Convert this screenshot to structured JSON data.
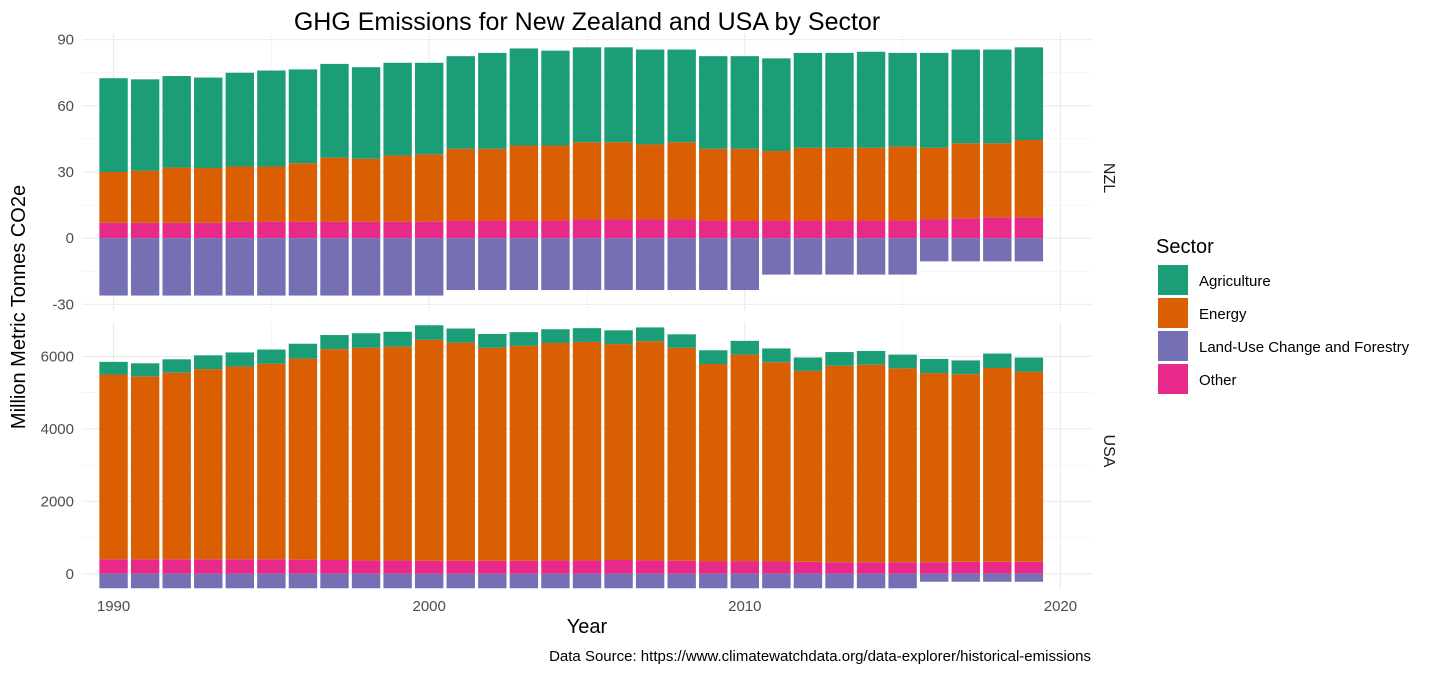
{
  "chart_data": {
    "type": "bar",
    "stacked": true,
    "title": "GHG Emissions for New Zealand and USA by Sector",
    "xlabel": "Year",
    "ylabel": "Million Metric Tonnes CO2e",
    "caption": "Data Source: https://www.climatewatchdata.org/data-explorer/historical-emissions",
    "legend_title": "Sector",
    "legend_position": "right",
    "grid": true,
    "x": [
      1990,
      1991,
      1992,
      1993,
      1994,
      1995,
      1996,
      1997,
      1998,
      1999,
      2000,
      2001,
      2002,
      2003,
      2004,
      2005,
      2006,
      2007,
      2008,
      2009,
      2010,
      2011,
      2012,
      2013,
      2014,
      2015,
      2016,
      2017,
      2018,
      2019
    ],
    "xlim": [
      1989,
      2021
    ],
    "x_ticks": [
      1990,
      2000,
      2010,
      2020
    ],
    "sectors": [
      {
        "name": "Agriculture",
        "color": "#1b9e77"
      },
      {
        "name": "Energy",
        "color": "#d95f02"
      },
      {
        "name": "Land-Use Change and Forestry",
        "color": "#7570b3"
      },
      {
        "name": "Other",
        "color": "#e7298a"
      }
    ],
    "panels": [
      {
        "strip": "NZL",
        "ylim": [
          -33,
          93
        ],
        "y_ticks": [
          90,
          60,
          30,
          0,
          -30
        ],
        "series": [
          {
            "name": "Other",
            "values": [
              7.0,
              7.0,
              7.0,
              7.0,
              7.5,
              7.5,
              7.5,
              7.5,
              7.5,
              7.5,
              7.5,
              8.0,
              8.0,
              8.0,
              8.0,
              8.5,
              8.5,
              8.5,
              8.5,
              8.0,
              8.0,
              8.0,
              8.0,
              8.0,
              8.0,
              8.0,
              8.5,
              9.0,
              9.5,
              9.5
            ]
          },
          {
            "name": "Energy",
            "values": [
              23.0,
              23.5,
              25.0,
              24.8,
              25.0,
              25.0,
              26.5,
              29.0,
              28.5,
              30.0,
              30.5,
              32.5,
              32.5,
              34.0,
              34.0,
              35.0,
              35.0,
              34.0,
              35.0,
              32.5,
              32.5,
              31.5,
              33.0,
              33.0,
              33.0,
              33.5,
              32.5,
              34.0,
              33.5,
              35.0
            ]
          },
          {
            "name": "Agriculture",
            "values": [
              42.5,
              41.5,
              41.5,
              41.0,
              42.5,
              43.5,
              42.5,
              42.5,
              41.5,
              42.0,
              41.5,
              42.0,
              43.5,
              44.0,
              43.0,
              43.0,
              43.0,
              43.0,
              42.0,
              42.0,
              42.0,
              42.0,
              43.0,
              43.0,
              43.5,
              42.5,
              43.0,
              42.5,
              42.5,
              42.0
            ]
          },
          {
            "name": "Land-Use Change and Forestry",
            "values": [
              -26.0,
              -26.0,
              -26.0,
              -26.0,
              -26.0,
              -26.0,
              -26.0,
              -26.0,
              -26.0,
              -26.0,
              -26.0,
              -23.5,
              -23.5,
              -23.5,
              -23.5,
              -23.5,
              -23.5,
              -23.5,
              -23.5,
              -23.5,
              -23.5,
              -16.5,
              -16.5,
              -16.5,
              -16.5,
              -16.5,
              -10.5,
              -10.5,
              -10.5,
              -10.5
            ]
          }
        ]
      },
      {
        "strip": "USA",
        "ylim": [
          -420,
          6950
        ],
        "y_ticks": [
          6000,
          4000,
          2000,
          0
        ],
        "series": [
          {
            "name": "Other",
            "values": [
              400,
              400,
              400,
              400,
              400,
              400,
              390,
              380,
              370,
              370,
              360,
              360,
              360,
              360,
              370,
              370,
              380,
              370,
              360,
              340,
              350,
              340,
              330,
              320,
              320,
              320,
              320,
              330,
              330,
              330
            ]
          },
          {
            "name": "Energy",
            "values": [
              5100,
              5050,
              5150,
              5250,
              5320,
              5400,
              5550,
              5820,
              5870,
              5900,
              6100,
              6020,
              5880,
              5930,
              6000,
              6030,
              5960,
              6050,
              5880,
              5450,
              5700,
              5500,
              5270,
              5420,
              5450,
              5350,
              5220,
              5180,
              5350,
              5250
            ]
          },
          {
            "name": "Agriculture",
            "values": [
              350,
              360,
              370,
              380,
              390,
              390,
              410,
              390,
              400,
              410,
              400,
              390,
              380,
              380,
              380,
              380,
              380,
              380,
              370,
              380,
              380,
              380,
              370,
              380,
              380,
              380,
              390,
              380,
              400,
              390
            ]
          },
          {
            "name": "Land-Use Change and Forestry",
            "values": [
              -400,
              -400,
              -400,
              -400,
              -400,
              -400,
              -400,
              -400,
              -400,
              -400,
              -400,
              -400,
              -400,
              -400,
              -400,
              -400,
              -400,
              -400,
              -400,
              -400,
              -400,
              -400,
              -400,
              -400,
              -400,
              -400,
              -220,
              -220,
              -220,
              -220
            ]
          }
        ]
      }
    ]
  }
}
